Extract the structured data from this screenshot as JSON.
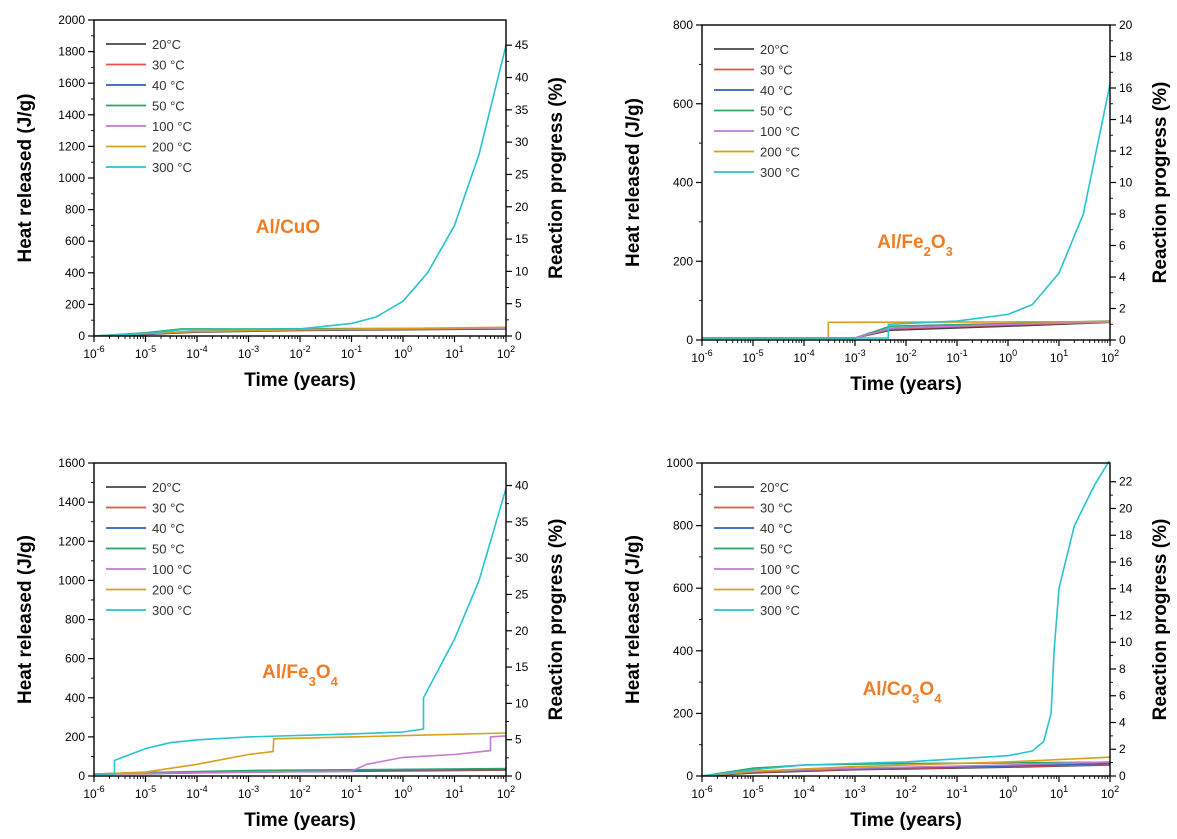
{
  "colors": {
    "20C": "#444444",
    "30C": "#e8504a",
    "40C": "#2a63b8",
    "50C": "#2aa568",
    "100C": "#c57ad6",
    "200C": "#d8a019",
    "300C": "#27c3cf",
    "annotation": "#f07d24"
  },
  "chart_data": [
    {
      "type": "line",
      "annotation": "Al/CuO",
      "xlabel": "Time (years)",
      "ylabel": "Heat released (J/g)",
      "y2label": "Reaction progress (%)",
      "xscale": "log",
      "xlim": [
        1e-06,
        100
      ],
      "ylim": [
        0,
        2000
      ],
      "y2lim": [
        0,
        48.9
      ],
      "xticks": [
        -6,
        -5,
        -4,
        -3,
        -2,
        -1,
        0,
        1,
        2
      ],
      "yticks": [
        0,
        200,
        400,
        600,
        800,
        1000,
        1200,
        1400,
        1600,
        1800,
        2000
      ],
      "y2ticks": [
        0,
        5,
        10,
        15,
        20,
        25,
        30,
        35,
        40,
        45
      ],
      "legend_position": "top-left",
      "series": [
        {
          "name": "20°C",
          "color": "20C",
          "points": [
            [
              1e-06,
              0
            ],
            [
              1e-05,
              10
            ],
            [
              0.0001,
              25
            ],
            [
              0.01,
              35
            ],
            [
              1,
              40
            ],
            [
              100,
              45
            ]
          ]
        },
        {
          "name": "30 °C",
          "color": "30C",
          "points": [
            [
              1e-06,
              0
            ],
            [
              1e-05,
              12
            ],
            [
              0.0001,
              28
            ],
            [
              0.01,
              38
            ],
            [
              1,
              43
            ],
            [
              100,
              47
            ]
          ]
        },
        {
          "name": "40 °C",
          "color": "40C",
          "points": [
            [
              1e-06,
              0
            ],
            [
              1e-05,
              14
            ],
            [
              0.0001,
              30
            ],
            [
              0.01,
              40
            ],
            [
              1,
              44
            ],
            [
              100,
              48
            ]
          ]
        },
        {
          "name": "50 °C",
          "color": "50C",
          "points": [
            [
              1e-06,
              0
            ],
            [
              1e-05,
              20
            ],
            [
              5e-05,
              45
            ],
            [
              0.001,
              45
            ],
            [
              0.1,
              47
            ],
            [
              100,
              50
            ]
          ]
        },
        {
          "name": "100 °C",
          "color": "100C",
          "points": [
            [
              1e-06,
              0
            ],
            [
              1e-05,
              15
            ],
            [
              0.0001,
              30
            ],
            [
              0.01,
              40
            ],
            [
              1,
              45
            ],
            [
              100,
              50
            ]
          ]
        },
        {
          "name": "200 °C",
          "color": "200C",
          "points": [
            [
              1e-06,
              0
            ],
            [
              1e-05,
              15
            ],
            [
              0.0001,
              30
            ],
            [
              0.01,
              40
            ],
            [
              1,
              48
            ],
            [
              100,
              55
            ]
          ]
        },
        {
          "name": "300 °C",
          "color": "300C",
          "points": [
            [
              1e-06,
              0
            ],
            [
              1e-05,
              15
            ],
            [
              5e-05,
              40
            ],
            [
              0.01,
              45
            ],
            [
              0.1,
              80
            ],
            [
              0.3,
              120
            ],
            [
              1,
              220
            ],
            [
              3,
              400
            ],
            [
              10,
              700
            ],
            [
              30,
              1150
            ],
            [
              100,
              1840
            ]
          ]
        }
      ]
    },
    {
      "type": "line",
      "annotation": "Al/Fe2O3",
      "xlabel": "Time (years)",
      "ylabel": "Heat released (J/g)",
      "y2label": "Reaction progress (%)",
      "xscale": "log",
      "xlim": [
        1e-06,
        100
      ],
      "ylim": [
        0,
        800
      ],
      "y2lim": [
        0,
        20
      ],
      "xticks": [
        -6,
        -5,
        -4,
        -3,
        -2,
        -1,
        0,
        1,
        2
      ],
      "yticks": [
        0,
        200,
        400,
        600,
        800
      ],
      "y2ticks": [
        0,
        2,
        4,
        6,
        8,
        10,
        12,
        14,
        16,
        18,
        20
      ],
      "legend_position": "top-left",
      "series": [
        {
          "name": "20°C",
          "color": "20C",
          "points": [
            [
              1e-06,
              5
            ],
            [
              0.001,
              5
            ],
            [
              0.005,
              25
            ],
            [
              1,
              35
            ],
            [
              100,
              45
            ]
          ]
        },
        {
          "name": "30 °C",
          "color": "30C",
          "points": [
            [
              1e-06,
              5
            ],
            [
              0.001,
              5
            ],
            [
              0.005,
              28
            ],
            [
              1,
              38
            ],
            [
              100,
              46
            ]
          ]
        },
        {
          "name": "40 °C",
          "color": "40C",
          "points": [
            [
              1e-06,
              5
            ],
            [
              0.001,
              5
            ],
            [
              0.005,
              30
            ],
            [
              1,
              40
            ],
            [
              100,
              47
            ]
          ]
        },
        {
          "name": "50 °C",
          "color": "50C",
          "points": [
            [
              1e-06,
              5
            ],
            [
              0.001,
              5
            ],
            [
              0.005,
              35
            ],
            [
              1,
              42
            ],
            [
              100,
              48
            ]
          ]
        },
        {
          "name": "100 °C",
          "color": "100C",
          "points": [
            [
              1e-06,
              5
            ],
            [
              0.001,
              5
            ],
            [
              0.005,
              30
            ],
            [
              1,
              40
            ],
            [
              100,
              46
            ]
          ]
        },
        {
          "name": "200 °C",
          "color": "200C",
          "points": [
            [
              1e-06,
              5
            ],
            [
              0.0003,
              5
            ],
            [
              0.0003,
              45
            ],
            [
              1,
              46
            ],
            [
              100,
              47
            ]
          ]
        },
        {
          "name": "300 °C",
          "color": "300C",
          "points": [
            [
              1e-06,
              5
            ],
            [
              0.0045,
              5
            ],
            [
              0.0045,
              40
            ],
            [
              0.1,
              48
            ],
            [
              1,
              65
            ],
            [
              3,
              90
            ],
            [
              10,
              170
            ],
            [
              30,
              320
            ],
            [
              100,
              650
            ]
          ]
        }
      ]
    },
    {
      "type": "line",
      "annotation": "Al/Fe3O4",
      "xlabel": "Time (years)",
      "ylabel": "Heat released (J/g)",
      "y2label": "Reaction progress (%)",
      "xscale": "log",
      "xlim": [
        1e-06,
        100
      ],
      "ylim": [
        0,
        1600
      ],
      "y2lim": [
        0,
        43.1
      ],
      "xticks": [
        -6,
        -5,
        -4,
        -3,
        -2,
        -1,
        0,
        1,
        2
      ],
      "yticks": [
        0,
        200,
        400,
        600,
        800,
        1000,
        1200,
        1400,
        1600
      ],
      "y2ticks": [
        0,
        5,
        10,
        15,
        20,
        25,
        30,
        35,
        40
      ],
      "legend_position": "top-left",
      "series": [
        {
          "name": "20°C",
          "color": "20C",
          "points": [
            [
              1e-06,
              10
            ],
            [
              1e-05,
              12
            ],
            [
              0.001,
              20
            ],
            [
              100,
              30
            ]
          ]
        },
        {
          "name": "30 °C",
          "color": "30C",
          "points": [
            [
              1e-06,
              10
            ],
            [
              1e-05,
              14
            ],
            [
              0.001,
              22
            ],
            [
              100,
              32
            ]
          ]
        },
        {
          "name": "40 °C",
          "color": "40C",
          "points": [
            [
              1e-06,
              10
            ],
            [
              1e-05,
              16
            ],
            [
              0.001,
              25
            ],
            [
              100,
              35
            ]
          ]
        },
        {
          "name": "50 °C",
          "color": "50C",
          "points": [
            [
              1e-06,
              10
            ],
            [
              1e-05,
              18
            ],
            [
              0.001,
              28
            ],
            [
              100,
              38
            ]
          ]
        },
        {
          "name": "100 °C",
          "color": "100C",
          "points": [
            [
              1e-06,
              10
            ],
            [
              0.001,
              20
            ],
            [
              0.1,
              25
            ],
            [
              0.2,
              60
            ],
            [
              1,
              95
            ],
            [
              10,
              110
            ],
            [
              50,
              130
            ],
            [
              50,
              200
            ],
            [
              100,
              205
            ]
          ]
        },
        {
          "name": "200 °C",
          "color": "200C",
          "points": [
            [
              1e-06,
              10
            ],
            [
              1e-05,
              20
            ],
            [
              0.0001,
              60
            ],
            [
              0.001,
              110
            ],
            [
              0.003,
              125
            ],
            [
              0.0031,
              190
            ],
            [
              0.1,
              200
            ],
            [
              100,
              220
            ]
          ]
        },
        {
          "name": "300 °C",
          "color": "300C",
          "points": [
            [
              1e-06,
              10
            ],
            [
              2.5e-06,
              10
            ],
            [
              2.5e-06,
              80
            ],
            [
              5e-06,
              110
            ],
            [
              1e-05,
              140
            ],
            [
              3e-05,
              170
            ],
            [
              0.0001,
              185
            ],
            [
              0.001,
              200
            ],
            [
              0.1,
              215
            ],
            [
              1,
              225
            ],
            [
              2.5,
              240
            ],
            [
              2.5,
              400
            ],
            [
              10,
              700
            ],
            [
              30,
              1000
            ],
            [
              100,
              1470
            ]
          ]
        }
      ]
    },
    {
      "type": "line",
      "annotation": "Al/Co3O4",
      "xlabel": "Time (years)",
      "ylabel": "Heat released (J/g)",
      "y2label": "Reaction progress (%)",
      "xscale": "log",
      "xlim": [
        1e-06,
        100
      ],
      "ylim": [
        0,
        1000
      ],
      "y2lim": [
        0,
        23.4
      ],
      "xticks": [
        -6,
        -5,
        -4,
        -3,
        -2,
        -1,
        0,
        1,
        2
      ],
      "yticks": [
        0,
        200,
        400,
        600,
        800,
        1000
      ],
      "y2ticks": [
        0,
        2,
        4,
        6,
        8,
        10,
        12,
        14,
        16,
        18,
        20,
        22
      ],
      "legend_position": "top-left",
      "series": [
        {
          "name": "20°C",
          "color": "20C",
          "points": [
            [
              1e-06,
              0
            ],
            [
              1e-05,
              10
            ],
            [
              0.001,
              20
            ],
            [
              1,
              28
            ],
            [
              100,
              35
            ]
          ]
        },
        {
          "name": "30 °C",
          "color": "30C",
          "points": [
            [
              1e-06,
              0
            ],
            [
              1e-05,
              12
            ],
            [
              0.001,
              22
            ],
            [
              1,
              30
            ],
            [
              100,
              37
            ]
          ]
        },
        {
          "name": "40 °C",
          "color": "40C",
          "points": [
            [
              1e-06,
              0
            ],
            [
              1e-05,
              14
            ],
            [
              0.001,
              24
            ],
            [
              1,
              32
            ],
            [
              100,
              40
            ]
          ]
        },
        {
          "name": "50 °C",
          "color": "50C",
          "points": [
            [
              1e-06,
              0
            ],
            [
              1e-05,
              25
            ],
            [
              0.0001,
              35
            ],
            [
              0.01,
              40
            ],
            [
              1,
              42
            ],
            [
              100,
              44
            ]
          ]
        },
        {
          "name": "100 °C",
          "color": "100C",
          "points": [
            [
              1e-06,
              0
            ],
            [
              1e-05,
              15
            ],
            [
              0.001,
              25
            ],
            [
              1,
              35
            ],
            [
              100,
              45
            ]
          ]
        },
        {
          "name": "200 °C",
          "color": "200C",
          "points": [
            [
              1e-06,
              0
            ],
            [
              1e-05,
              15
            ],
            [
              0.001,
              30
            ],
            [
              1,
              45
            ],
            [
              100,
              60
            ]
          ]
        },
        {
          "name": "300 °C",
          "color": "300C",
          "points": [
            [
              1e-06,
              0
            ],
            [
              1e-05,
              20
            ],
            [
              0.0001,
              35
            ],
            [
              0.01,
              45
            ],
            [
              0.1,
              55
            ],
            [
              1,
              65
            ],
            [
              3,
              80
            ],
            [
              5,
              110
            ],
            [
              7,
              200
            ],
            [
              8,
              400
            ],
            [
              10,
              600
            ],
            [
              20,
              800
            ],
            [
              50,
              930
            ],
            [
              100,
              1010
            ]
          ]
        }
      ]
    }
  ]
}
